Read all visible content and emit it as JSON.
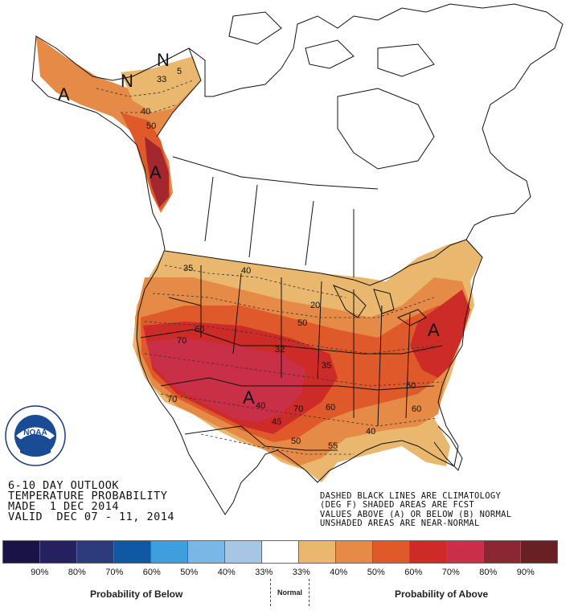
{
  "title": {
    "line1": "6-10 DAY OUTLOOK",
    "line2": "TEMPERATURE PROBABILITY",
    "line3": "MADE  1 DEC 2014",
    "line4": "VALID  DEC 07 - 11, 2014"
  },
  "notes": {
    "line1": "DASHED BLACK LINES ARE CLIMATOLOGY",
    "line2": "(DEG F) SHADED AREAS ARE FCST",
    "line3": "VALUES ABOVE (A) OR BELOW (B) NORMAL",
    "line4": "UNSHADED AREAS ARE NEAR-NORMAL"
  },
  "logo": {
    "name": "NOAA",
    "ring_text": "NATIONAL OCEANIC AND ATMOSPHERIC ADMINISTRATION · U.S. DEPARTMENT OF COMMERCE"
  },
  "legend": {
    "below_label": "Probability of Below",
    "normal_label": "Normal",
    "above_label": "Probability of Above",
    "percents": [
      "90%",
      "80%",
      "70%",
      "60%",
      "50%",
      "40%",
      "33%",
      "33%",
      "40%",
      "50%",
      "60%",
      "70%",
      "80%",
      "90%"
    ],
    "colors": [
      "#1a1446",
      "#26215e",
      "#2b3b7c",
      "#0e58a4",
      "#3e9ede",
      "#79b8e6",
      "#a7c6e4",
      "#ffffff",
      "#e9b86e",
      "#e68a47",
      "#e0592a",
      "#cd2b28",
      "#c92f47",
      "#8b2633",
      "#6a1f25"
    ]
  },
  "map_labels": {
    "A_ne": "A",
    "A_sw": "A",
    "A_ak": "A",
    "A_bc": "A",
    "N1": "N",
    "N2": "N",
    "c33": "33",
    "c40a": "40",
    "c50a": "50",
    "c35": "35",
    "c40": "40",
    "c20": "20",
    "c50": "50",
    "c60": "60",
    "c70": "70",
    "c32": "32",
    "c35b": "35",
    "c40b": "40",
    "c45": "45",
    "c70b": "70",
    "c60b": "60",
    "c50b": "50",
    "c55": "55",
    "c40c": "40",
    "c50c": "50",
    "c60c": "60",
    "c70c": "70",
    "c5": "5"
  }
}
